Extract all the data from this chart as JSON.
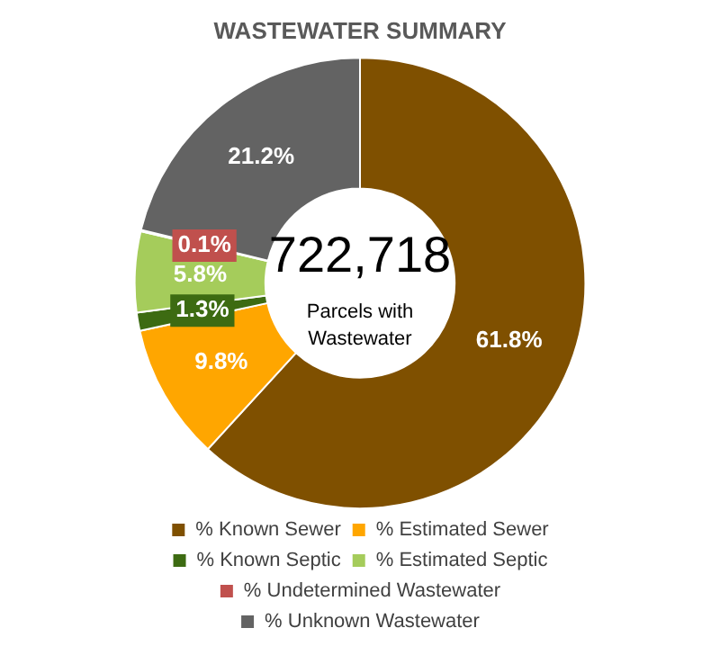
{
  "chart_data": {
    "type": "donut",
    "title": "WASTEWATER SUMMARY",
    "categories": [
      "% Known Sewer",
      "% Estimated Sewer",
      "% Known Septic",
      "% Estimated Septic",
      "% Undetermined Wastewater",
      "% Unknown Wastewater"
    ],
    "values": [
      61.8,
      9.8,
      1.3,
      5.8,
      0.1,
      21.2
    ],
    "colors": [
      "#7f5000",
      "#ffa600",
      "#3d6b12",
      "#a5cc5b",
      "#c0504d",
      "#636363"
    ],
    "value_labels": [
      "61.8%",
      "9.8%",
      "1.3%",
      "5.8%",
      "0.1%",
      "21.2%"
    ],
    "annotations": [
      "722,718",
      "Parcels with Wastewater"
    ],
    "legend": "bottom"
  }
}
